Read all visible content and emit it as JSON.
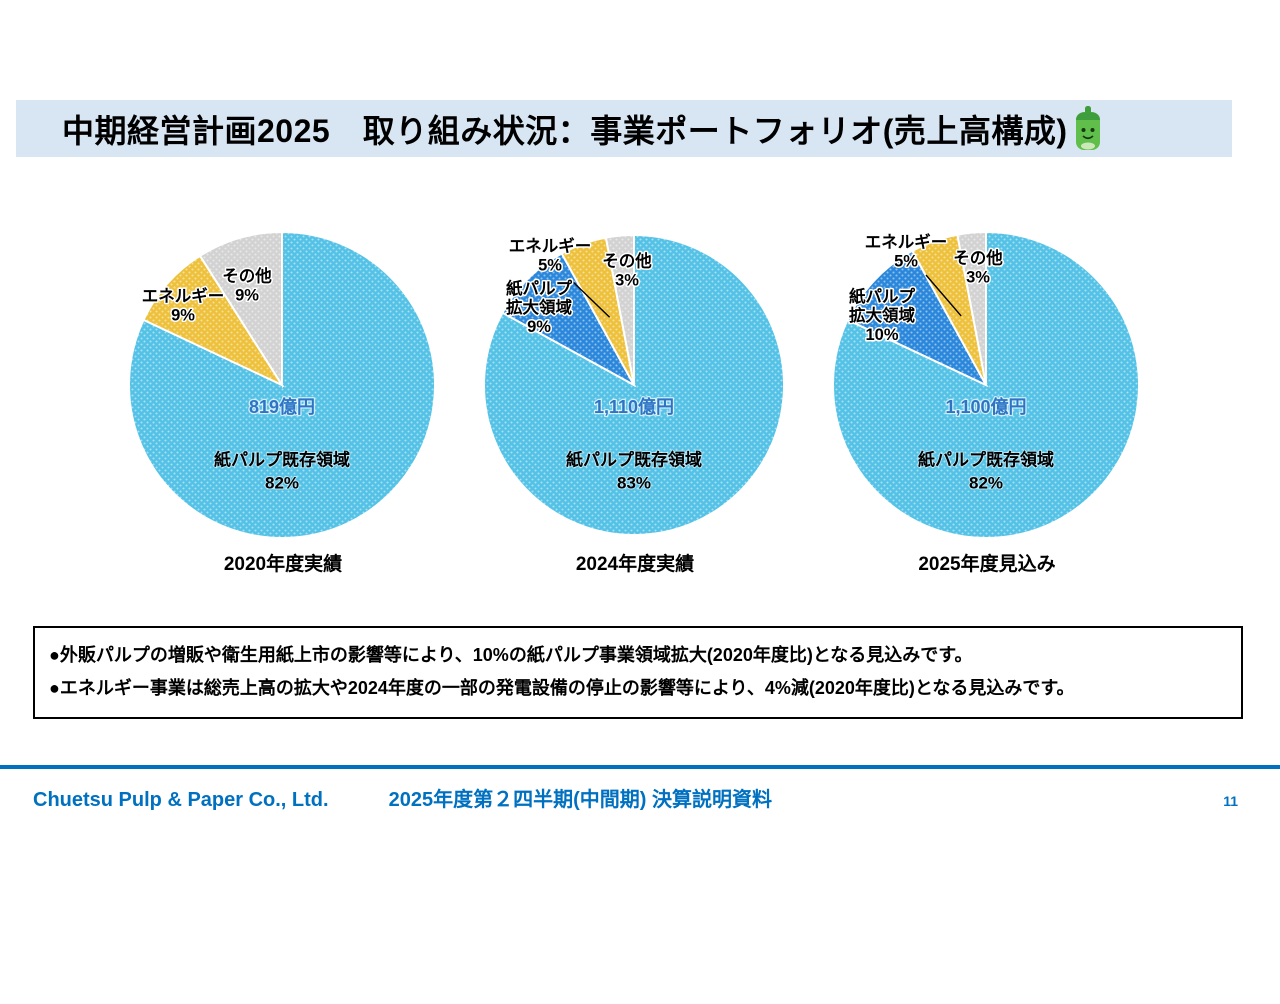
{
  "title": "中期経営計画2025　取り組み状況：事業ポートフォリオ(売上高構成)",
  "colors": {
    "title_bar_bg": "#D8E6F4",
    "pie_existing": "#54C2E6",
    "pie_expansion": "#2B87DB",
    "pie_energy": "#EEC13C",
    "pie_other": "#D2D2D2",
    "amount_text": "#2E74C5",
    "footer_blue": "#0070C0"
  },
  "chart_data": [
    {
      "type": "pie",
      "caption": "2020年度実績",
      "center_label": "819億円",
      "unit": "%",
      "slices": [
        {
          "name": "紙パルプ既存領域",
          "value": 82,
          "label": "紙パルプ既存領域\n82%",
          "color_key": "pie_existing"
        },
        {
          "name": "エネルギー",
          "value": 9,
          "label": "エネルギー\n9%",
          "color_key": "pie_energy"
        },
        {
          "name": "その他",
          "value": 9,
          "label": "その他\n9%",
          "color_key": "pie_other"
        }
      ]
    },
    {
      "type": "pie",
      "caption": "2024年度実績",
      "center_label": "1,110億円",
      "unit": "%",
      "slices": [
        {
          "name": "紙パルプ既存領域",
          "value": 83,
          "label": "紙パルプ既存領域\n83%",
          "color_key": "pie_existing"
        },
        {
          "name": "紙パルプ拡大領域",
          "value": 9,
          "label": "紙パルプ\n拡大領域\n9%",
          "color_key": "pie_expansion"
        },
        {
          "name": "エネルギー",
          "value": 5,
          "label": "エネルギー\n5%",
          "color_key": "pie_energy"
        },
        {
          "name": "その他",
          "value": 3,
          "label": "その他\n3%",
          "color_key": "pie_other"
        }
      ]
    },
    {
      "type": "pie",
      "caption": "2025年度見込み",
      "center_label": "1,100億円",
      "unit": "%",
      "slices": [
        {
          "name": "紙パルプ既存領域",
          "value": 82,
          "label": "紙パルプ既存領域\n82%",
          "color_key": "pie_existing"
        },
        {
          "name": "紙パルプ拡大領域",
          "value": 10,
          "label": "紙パルプ\n拡大領域\n10%",
          "color_key": "pie_expansion"
        },
        {
          "name": "エネルギー",
          "value": 5,
          "label": "エネルギー\n5%",
          "color_key": "pie_energy"
        },
        {
          "name": "その他",
          "value": 3,
          "label": "その他\n3%",
          "color_key": "pie_other"
        }
      ]
    }
  ],
  "notes": [
    "●外販パルプの増販や衛生用紙上市の影響等により、10%の紙パルプ事業領域拡大(2020年度比)となる見込みです。",
    "●エネルギー事業は総売上高の拡大や2024年度の一部の発電設備の停止の影響等により、4%減(2020年度比)となる見込みです。"
  ],
  "footer": {
    "company": "Chuetsu Pulp & Paper Co., Ltd.",
    "document_title": "2025年度第２四半期(中間期) 決算説明資料",
    "page_number": "11"
  }
}
